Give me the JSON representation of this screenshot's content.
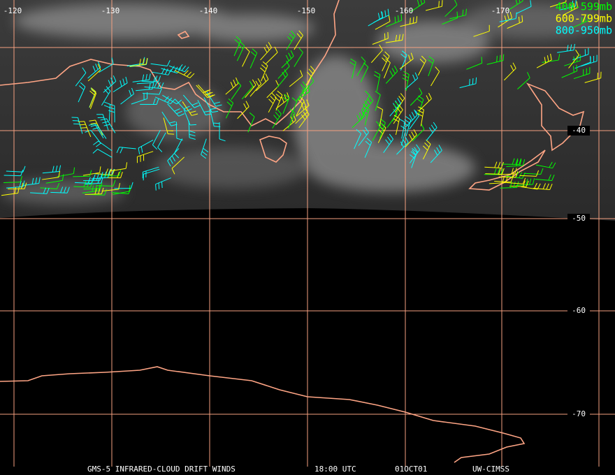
{
  "title": "GMS-5 INFRARED-CLOUD DRIFT WINDS",
  "time": "18:00 UTC",
  "date": "01OCT01",
  "source": "UW-CIMSS",
  "longitude_labels": [
    "-120",
    "-130",
    "-140",
    "-150",
    "-160",
    "-170"
  ],
  "latitude_labels": [
    "-40",
    "-50",
    "-60",
    "-70"
  ],
  "legend": [
    {
      "label": "400-599mb",
      "color": "#00ff00"
    },
    {
      "label": "600-799mb",
      "color": "#ffff00"
    },
    {
      "label": "800-950mb",
      "color": "#00ffff"
    }
  ]
}
